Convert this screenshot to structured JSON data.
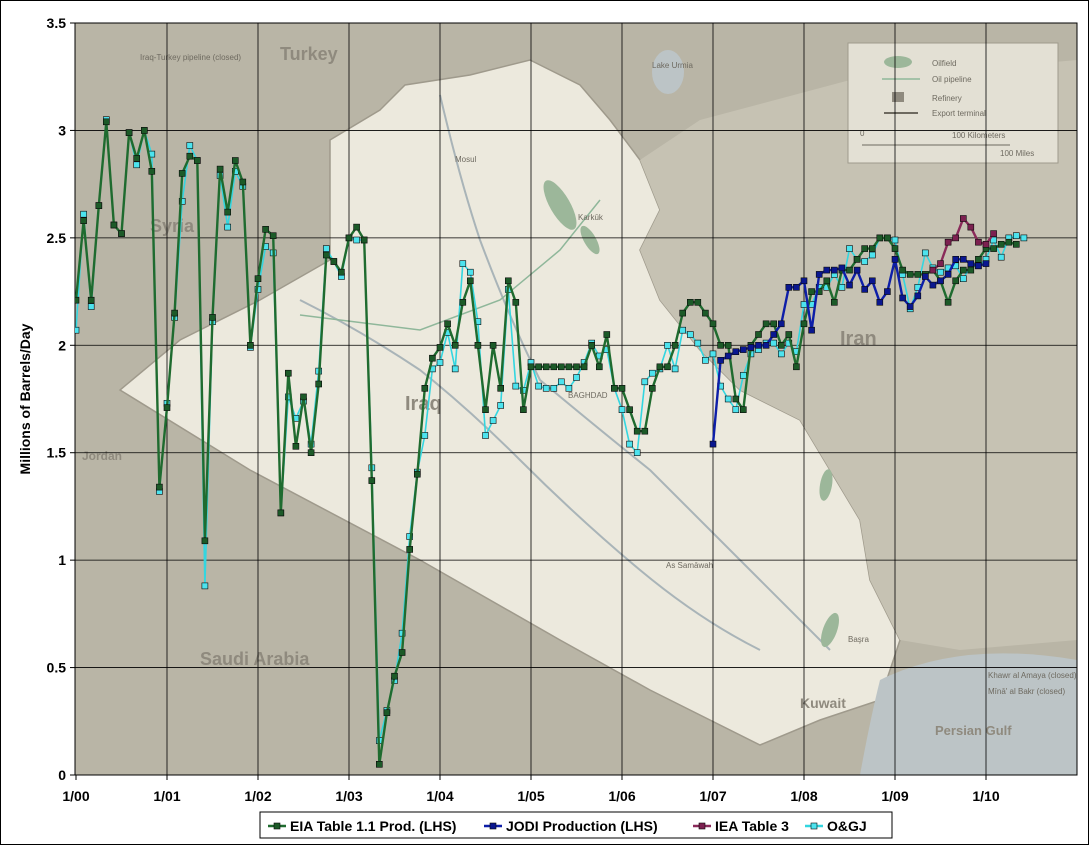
{
  "chart_data": {
    "type": "line",
    "title": "",
    "xlabel": "",
    "ylabel": "Millions of Barrels/Day",
    "ylim": [
      0,
      3.5
    ],
    "yticks": [
      "0",
      "0.5",
      "1",
      "1.5",
      "2",
      "2.5",
      "3",
      "3.5"
    ],
    "xticks": [
      "1/00",
      "1/01",
      "1/02",
      "1/03",
      "1/04",
      "1/05",
      "1/06",
      "1/07",
      "1/08",
      "1/09",
      "1/10"
    ],
    "x_unit": "months since January 2000",
    "xlim": [
      0,
      133
    ],
    "grid": true,
    "legend_position": "bottom",
    "background": "map of Iraq oil infrastructure",
    "series": [
      {
        "name": "EIA Table 1.1 Prod. (LHS)",
        "color": "#1f6b2f",
        "marker_color": "#1c5a28",
        "start_month": 0,
        "values": [
          2.21,
          2.58,
          2.21,
          2.65,
          3.04,
          2.56,
          2.52,
          2.99,
          2.87,
          3.0,
          2.81,
          1.34,
          1.71,
          2.15,
          2.8,
          2.88,
          2.86,
          1.09,
          2.13,
          2.82,
          2.62,
          2.86,
          2.76,
          2.0,
          2.31,
          2.54,
          2.51,
          1.22,
          1.87,
          1.53,
          1.76,
          1.5,
          1.82,
          2.42,
          2.39,
          2.34,
          2.5,
          2.55,
          2.49,
          1.37,
          0.05,
          0.29,
          0.46,
          0.57,
          1.05,
          1.4,
          1.8,
          1.94,
          1.99,
          2.1,
          2.0,
          2.2,
          2.3,
          2.0,
          1.7,
          2.0,
          1.8,
          2.3,
          2.2,
          1.7,
          1.9,
          1.9,
          1.9,
          1.9,
          1.9,
          1.9,
          1.9,
          1.9,
          2.0,
          1.9,
          2.05,
          1.8,
          1.8,
          1.7,
          1.6,
          1.6,
          1.8,
          1.9,
          1.9,
          2.0,
          2.15,
          2.2,
          2.2,
          2.15,
          2.1,
          2.0,
          2.0,
          1.75,
          1.7,
          2.0,
          2.05,
          2.1,
          2.1,
          2.0,
          2.05,
          1.9,
          2.1,
          2.25,
          2.25,
          2.3,
          2.2,
          2.35,
          2.35,
          2.4,
          2.45,
          2.45,
          2.5,
          2.5,
          2.45,
          2.35,
          2.33,
          2.33,
          2.33,
          2.35,
          2.3,
          2.2,
          2.3,
          2.35,
          2.35,
          2.4,
          2.45,
          2.45,
          2.47,
          2.48,
          2.47
        ]
      },
      {
        "name": "JODI Production (LHS)",
        "color": "#0d1ea8",
        "marker_color": "#0a1790",
        "start_month": 84,
        "values": [
          1.54,
          1.93,
          1.95,
          1.97,
          1.98,
          1.99,
          2.0,
          2.0,
          2.05,
          2.1,
          2.27,
          2.27,
          2.3,
          2.07,
          2.33,
          2.35,
          2.35,
          2.36,
          2.28,
          2.35,
          2.26,
          2.3,
          2.2,
          2.25,
          2.4,
          2.22,
          2.18,
          2.23,
          2.32,
          2.28,
          2.3,
          2.33,
          2.4,
          2.4,
          2.38,
          2.37,
          2.38
        ]
      },
      {
        "name": "IEA Table 3",
        "color": "#8a2a5a",
        "marker_color": "#7c2050",
        "start_month": 113,
        "values": [
          2.35,
          2.38,
          2.48,
          2.5,
          2.59,
          2.55,
          2.48,
          2.47,
          2.52
        ]
      },
      {
        "name": "O&GJ",
        "color": "#33d6e0",
        "marker_color": "#4de3ee",
        "start_month": 0,
        "values": [
          2.07,
          2.61,
          2.18,
          2.65,
          3.05,
          2.56,
          2.52,
          2.99,
          2.84,
          3.0,
          2.89,
          1.32,
          1.73,
          2.13,
          2.67,
          2.93,
          2.86,
          0.88,
          2.11,
          2.79,
          2.55,
          2.81,
          2.74,
          1.99,
          2.26,
          2.46,
          2.43,
          1.22,
          1.76,
          1.66,
          1.74,
          1.54,
          1.88,
          2.45,
          2.39,
          2.32,
          2.5,
          2.49,
          2.49,
          1.43,
          0.16,
          0.3,
          0.44,
          0.66,
          1.11,
          1.41,
          1.58,
          1.89,
          1.92,
          2.06,
          1.89,
          2.38,
          2.34,
          2.11,
          1.58,
          1.65,
          1.72,
          2.26,
          1.81,
          1.79,
          1.92,
          1.81,
          1.8,
          1.8,
          1.83,
          1.8,
          1.85,
          1.92,
          2.01,
          1.95,
          1.98,
          1.8,
          1.7,
          1.54,
          1.5,
          1.83,
          1.87,
          1.89,
          2.0,
          1.89,
          2.07,
          2.05,
          2.01,
          1.93,
          1.96,
          1.81,
          1.75,
          1.7,
          1.86,
          1.96,
          1.98,
          2.01,
          2.01,
          1.96,
          2.01,
          1.97,
          2.19,
          2.19,
          2.27,
          2.27,
          2.33,
          2.27,
          2.45,
          2.4,
          2.39,
          2.42,
          2.5,
          2.5,
          2.49,
          2.33,
          2.17,
          2.27,
          2.43,
          2.36,
          2.34,
          2.36,
          2.37,
          2.31,
          2.37,
          2.37,
          2.4,
          2.49,
          2.41,
          2.5,
          2.51,
          2.5
        ]
      }
    ]
  },
  "map_labels": {
    "turkey": "Turkey",
    "syria": "Syria",
    "jordan": "Jordan",
    "iraq": "Iraq",
    "iran": "Iran",
    "saudi": "Saudi Arabia",
    "kuwait": "Kuwait",
    "gulf": "Persian Gulf",
    "lake": "Lake Urmia",
    "mosul": "Mosul",
    "kirkuk": "Karkūk",
    "baghdad": "BAGHDAD",
    "basra": "Başra",
    "najaf": "As Samāwah",
    "pipeline_closed": "Iraq-Turkey pipeline (closed)",
    "khor": "Khawr al Amaya (closed)",
    "mina": "Mīnā' al Bakr (closed)"
  },
  "map_legend": {
    "oilfield": "Oilfield",
    "oil_pipeline": "Oil pipeline",
    "refinery": "Refinery",
    "export_terminal": "Export terminal",
    "km": "100 Kilometers",
    "miles": "100 Miles",
    "zero": "0"
  }
}
